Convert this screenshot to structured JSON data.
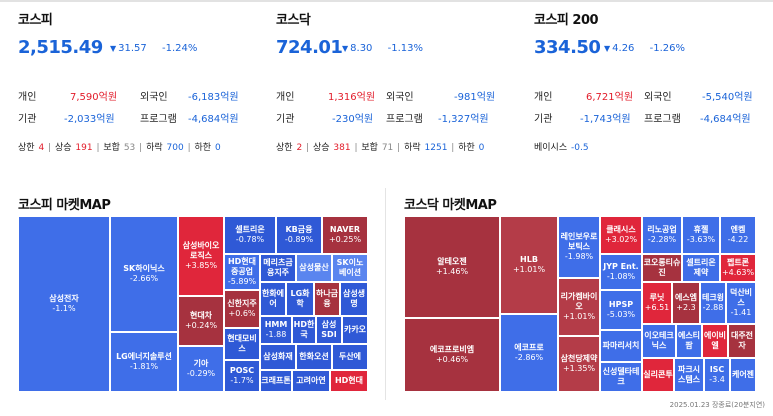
{
  "indices": [
    {
      "name": "코스피",
      "value": "2,515.49",
      "change": "31.57",
      "rate": "-1.24%",
      "investors": [
        {
          "label": "개인",
          "value": "7,590억원",
          "sign": "red"
        },
        {
          "label": "외국인",
          "value": "-6,183억원",
          "sign": "blue"
        },
        {
          "label": "기관",
          "value": "-2,033억원",
          "sign": "blue"
        },
        {
          "label": "프로그램",
          "value": "-4,684억원",
          "sign": "blue"
        }
      ],
      "stats": {
        "upper_label": "상한",
        "upper": "4",
        "rise_label": "상승",
        "rise": "191",
        "flat_label": "보합",
        "flat": "53",
        "fall_label": "하락",
        "fall": "700",
        "lower_label": "하한",
        "lower": "0"
      }
    },
    {
      "name": "코스닥",
      "value": "724.01",
      "change": "8.30",
      "rate": "-1.13%",
      "investors": [
        {
          "label": "개인",
          "value": "1,316억원",
          "sign": "red"
        },
        {
          "label": "외국인",
          "value": "-981억원",
          "sign": "blue"
        },
        {
          "label": "기관",
          "value": "-230억원",
          "sign": "blue"
        },
        {
          "label": "프로그램",
          "value": "-1,327억원",
          "sign": "blue"
        }
      ],
      "stats": {
        "upper_label": "상한",
        "upper": "2",
        "rise_label": "상승",
        "rise": "381",
        "flat_label": "보합",
        "flat": "71",
        "fall_label": "하락",
        "fall": "1251",
        "lower_label": "하한",
        "lower": "0"
      }
    },
    {
      "name": "코스피 200",
      "value": "334.50",
      "change": "4.26",
      "rate": "-1.26%",
      "investors": [
        {
          "label": "개인",
          "value": "6,721억원",
          "sign": "red"
        },
        {
          "label": "외국인",
          "value": "-5,540억원",
          "sign": "blue"
        },
        {
          "label": "기관",
          "value": "-1,743억원",
          "sign": "blue"
        },
        {
          "label": "프로그램",
          "value": "-4,684억원",
          "sign": "blue"
        }
      ],
      "basis": {
        "label": "베이시스",
        "value": "-0.5"
      }
    }
  ],
  "kospi_map": {
    "title": "코스피 마켓MAP",
    "cells": [
      {
        "name": "삼성전자",
        "rate": "-1.1%",
        "color": "b1"
      },
      {
        "name": "SK하이닉스",
        "rate": "-2.66%",
        "color": "b1"
      },
      {
        "name": "LG에너지솔루션",
        "rate": "-1.81%",
        "color": "b1"
      },
      {
        "name": "삼성바이오로직스",
        "rate": "+3.85%",
        "color": "r1"
      },
      {
        "name": "현대차",
        "rate": "+0.24%",
        "color": "r2"
      },
      {
        "name": "기아",
        "rate": "-0.29%",
        "color": "b1"
      },
      {
        "name": "셀트리온",
        "rate": "-0.78%",
        "color": "b2"
      },
      {
        "name": "KB금융",
        "rate": "-0.89%",
        "color": "b2"
      },
      {
        "name": "NAVER",
        "rate": "+0.25%",
        "color": "r2"
      },
      {
        "name": "HD현대중공업",
        "rate": "-5.89%",
        "color": "b1"
      },
      {
        "name": "메리츠금융지주",
        "rate": "",
        "color": "b2"
      },
      {
        "name": "삼성물산",
        "rate": "",
        "color": "b3"
      },
      {
        "name": "SK이노베이션",
        "rate": "",
        "color": "b3"
      },
      {
        "name": "신한지주",
        "rate": "+0.6%",
        "color": "r2"
      },
      {
        "name": "한화에어",
        "rate": "",
        "color": "b2"
      },
      {
        "name": "LG화학",
        "rate": "",
        "color": "b2"
      },
      {
        "name": "하나금융",
        "rate": "",
        "color": "r2"
      },
      {
        "name": "삼성생명",
        "rate": "",
        "color": "b2"
      },
      {
        "name": "현대모비스",
        "rate": "",
        "color": "b2"
      },
      {
        "name": "HMM",
        "rate": "-1.88",
        "color": "b2"
      },
      {
        "name": "HD한국",
        "rate": "",
        "color": "b2"
      },
      {
        "name": "삼성SDI",
        "rate": "",
        "color": "b2"
      },
      {
        "name": "카카오",
        "rate": "",
        "color": "b2"
      },
      {
        "name": "삼성화재",
        "rate": "",
        "color": "b2"
      },
      {
        "name": "한화오션",
        "rate": "",
        "color": "b2"
      },
      {
        "name": "두산에",
        "rate": "",
        "color": "b2"
      },
      {
        "name": "POSC",
        "rate": "-1.7%",
        "color": "b2"
      },
      {
        "name": "크래프톤",
        "rate": "",
        "color": "b2"
      },
      {
        "name": "고려아연",
        "rate": "",
        "color": "b2"
      },
      {
        "name": "HD현대",
        "rate": "",
        "color": "r1"
      }
    ]
  },
  "kosdaq_map": {
    "title": "코스닥 마켓MAP",
    "cells": [
      {
        "name": "알테오젠",
        "rate": "+1.46%",
        "color": "r2"
      },
      {
        "name": "에코프로비엠",
        "rate": "+0.46%",
        "color": "r2"
      },
      {
        "name": "HLB",
        "rate": "+1.01%",
        "color": "r3"
      },
      {
        "name": "에코프로",
        "rate": "-2.86%",
        "color": "b1"
      },
      {
        "name": "레인보우로보틱스",
        "rate": "-1.98%",
        "color": "b1"
      },
      {
        "name": "리가켐바이오",
        "rate": "+1.01%",
        "color": "r3"
      },
      {
        "name": "삼천당제약",
        "rate": "+1.35%",
        "color": "r3"
      },
      {
        "name": "클래시스",
        "rate": "+3.02%",
        "color": "r1"
      },
      {
        "name": "리노공업",
        "rate": "-2.28%",
        "color": "b1"
      },
      {
        "name": "휴젤",
        "rate": "-3.63%",
        "color": "b1"
      },
      {
        "name": "엔켐",
        "rate": "-4.22",
        "color": "b1"
      },
      {
        "name": "JYP Ent.",
        "rate": "-1.08%",
        "color": "b1"
      },
      {
        "name": "코오롱티슈진",
        "rate": "",
        "color": "r2"
      },
      {
        "name": "셀트리온제약",
        "rate": "",
        "color": "b1"
      },
      {
        "name": "펩트론",
        "rate": "+4.63%",
        "color": "r1"
      },
      {
        "name": "HPSP",
        "rate": "-5.03%",
        "color": "b1"
      },
      {
        "name": "루닛",
        "rate": "+6.51",
        "color": "r1"
      },
      {
        "name": "에스엠",
        "rate": "+2.3",
        "color": "r2"
      },
      {
        "name": "테크윙",
        "rate": "-2.88",
        "color": "b1"
      },
      {
        "name": "덕산비스",
        "rate": "-1.41",
        "color": "b1"
      },
      {
        "name": "파마리서치",
        "rate": "",
        "color": "b1"
      },
      {
        "name": "이오테크닉스",
        "rate": "",
        "color": "b1"
      },
      {
        "name": "에스티팜",
        "rate": "",
        "color": "b1"
      },
      {
        "name": "에이비엘",
        "rate": "",
        "color": "r1"
      },
      {
        "name": "대주전자",
        "rate": "",
        "color": "r2"
      },
      {
        "name": "신성델타테크",
        "rate": "",
        "color": "b1"
      },
      {
        "name": "실리콘투",
        "rate": "",
        "color": "r1"
      },
      {
        "name": "파크시스템스",
        "rate": "",
        "color": "b1"
      },
      {
        "name": "ISC",
        "rate": "-3.4",
        "color": "b1"
      },
      {
        "name": "케어젠",
        "rate": "",
        "color": "b1"
      }
    ]
  },
  "footer": "2025.01.23 장종료(20분지연)"
}
